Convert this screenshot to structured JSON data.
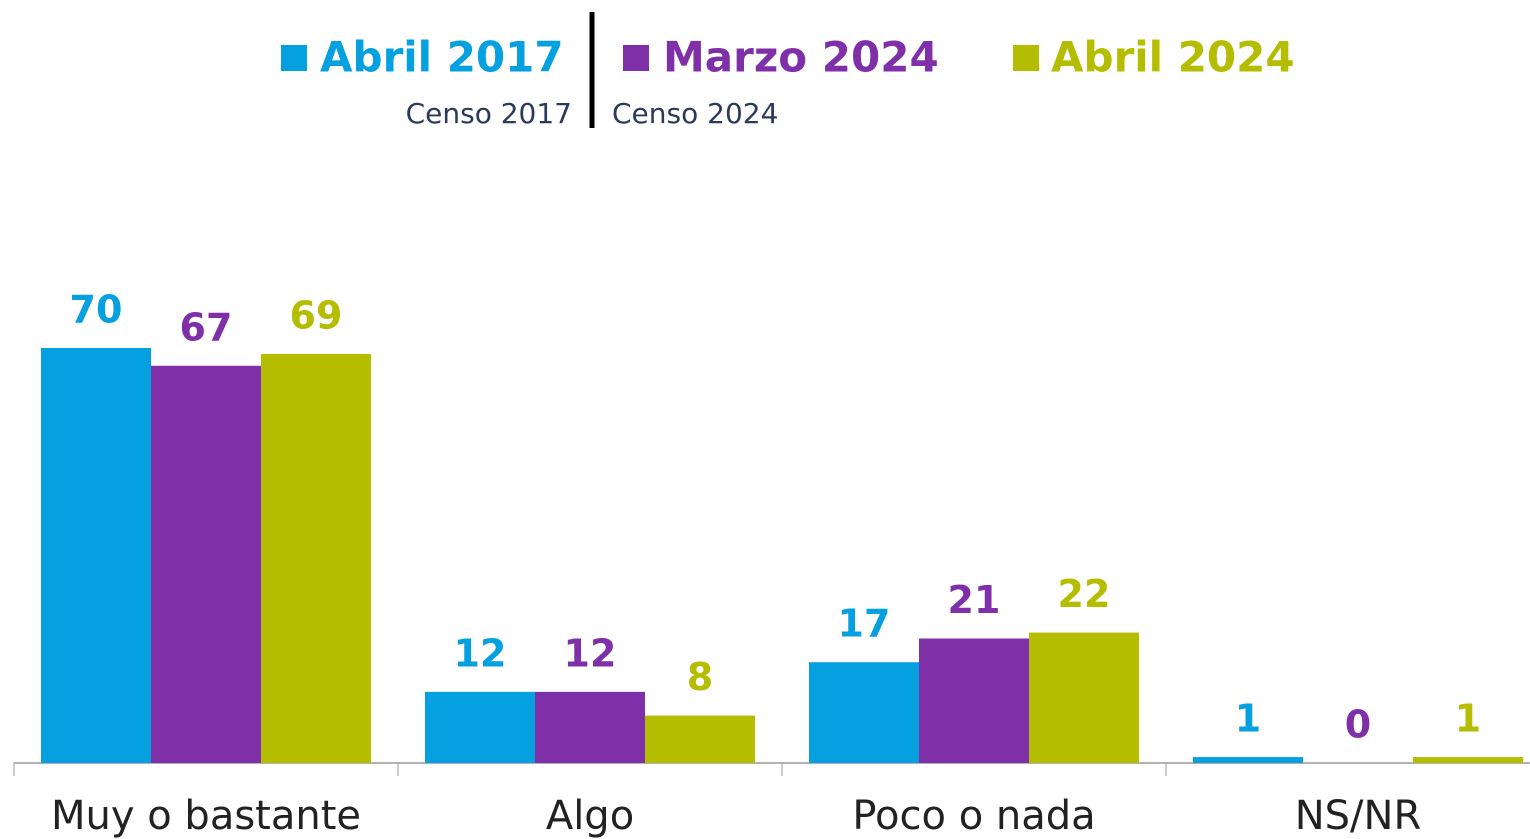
{
  "chart_data": {
    "type": "bar",
    "categories": [
      "Muy o bastante",
      "Algo",
      "Poco o nada",
      "NS/NR"
    ],
    "series": [
      {
        "name": "Abril 2017",
        "color": "#04a0e0",
        "values": [
          70,
          12,
          17,
          1
        ]
      },
      {
        "name": "Marzo 2024",
        "color": "#7f30a8",
        "values": [
          67,
          12,
          21,
          0
        ]
      },
      {
        "name": "Abril 2024",
        "color": "#b5bd00",
        "values": [
          69,
          8,
          22,
          1
        ]
      }
    ],
    "legend_notes": [
      "Censo 2017",
      "Censo 2024"
    ],
    "ylim": [
      0,
      70
    ]
  }
}
